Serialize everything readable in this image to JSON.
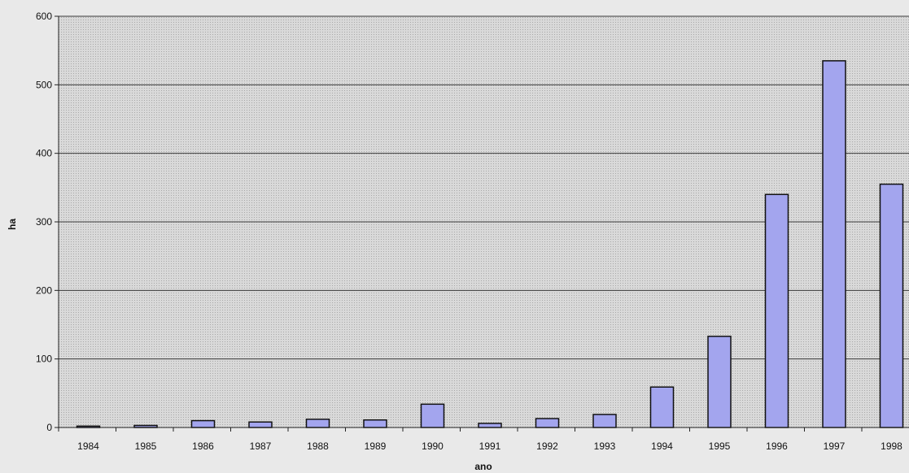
{
  "chart_data": {
    "type": "bar",
    "title": "",
    "xlabel": "ano",
    "ylabel": "ha",
    "categories": [
      "1984",
      "1985",
      "1986",
      "1987",
      "1988",
      "1989",
      "1990",
      "1991",
      "1992",
      "1993",
      "1994",
      "1995",
      "1996",
      "1997",
      "1998"
    ],
    "values": [
      2,
      3,
      10,
      8,
      12,
      11,
      34,
      6,
      13,
      19,
      59,
      133,
      340,
      535,
      355
    ],
    "ylim": [
      0,
      600
    ],
    "yticks": [
      0,
      100,
      200,
      300,
      400,
      500,
      600
    ],
    "grid": true,
    "colors": {
      "bar_fill": "#a3a5ee",
      "bar_stroke": "#111111",
      "plot_bg": "#d6d6d6",
      "gridline": "#3a3a3a"
    }
  }
}
